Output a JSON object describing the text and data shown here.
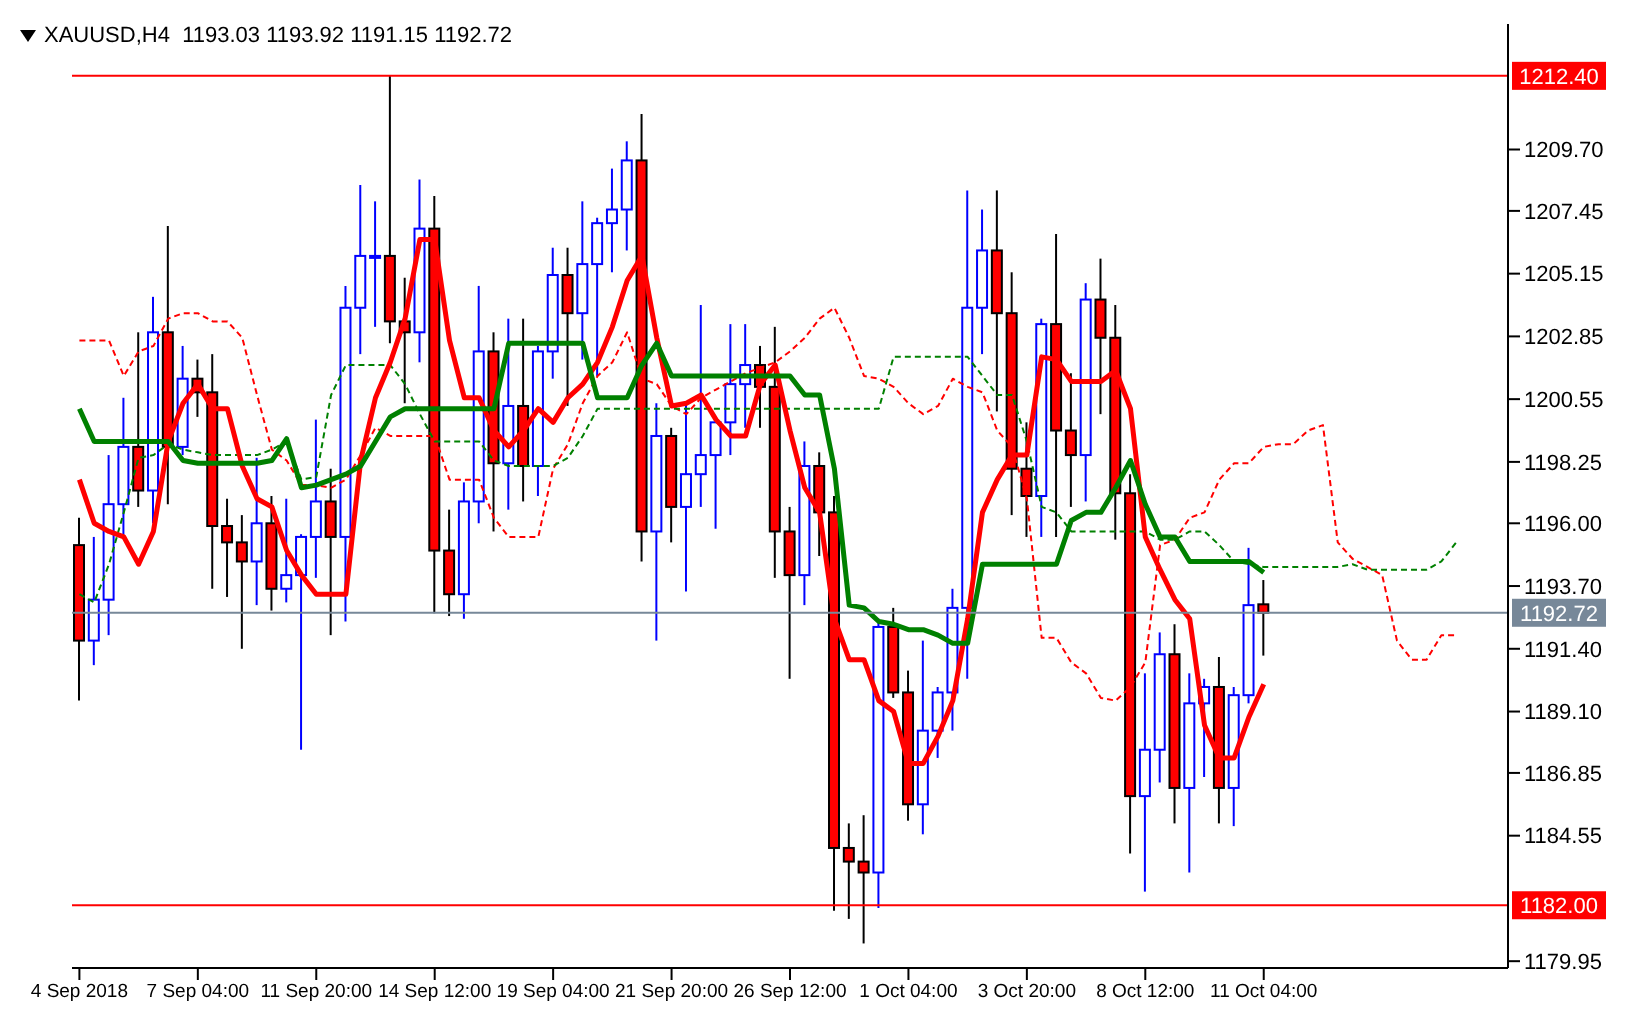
{
  "chart_data": {
    "type": "candlestick",
    "title": "XAUUSD,H4  1193.03 1193.92 1191.15 1192.72",
    "categories": [
      "4 Sep 2018",
      null,
      null,
      null,
      null,
      null,
      null,
      null,
      "7 Sep 04:00",
      null,
      null,
      null,
      null,
      null,
      null,
      null,
      "11 Sep 20:00",
      null,
      null,
      null,
      null,
      null,
      null,
      null,
      "14 Sep 12:00",
      null,
      null,
      null,
      null,
      null,
      null,
      null,
      "19 Sep 04:00",
      null,
      null,
      null,
      null,
      null,
      null,
      null,
      "21 Sep 20:00",
      null,
      null,
      null,
      null,
      null,
      null,
      null,
      "26 Sep 12:00",
      null,
      null,
      null,
      null,
      null,
      null,
      null,
      "1 Oct 04:00",
      null,
      null,
      null,
      null,
      null,
      null,
      null,
      "3 Oct 20:00",
      null,
      null,
      null,
      null,
      null,
      null,
      null,
      "8 Oct 12:00",
      null,
      null,
      null,
      null,
      null,
      null,
      null,
      "11 Oct 04:00",
      null,
      null,
      null,
      null,
      null,
      null,
      null,
      null,
      null,
      null,
      null,
      null,
      null,
      null,
      null,
      null
    ],
    "ohlc": [
      [
        1195.2,
        1196.2,
        1189.5,
        1191.7
      ],
      [
        1191.7,
        1195.5,
        1190.8,
        1193.2
      ],
      [
        1193.2,
        1198.5,
        1191.9,
        1196.7
      ],
      [
        1196.7,
        1200.6,
        1195.5,
        1198.8
      ],
      [
        1198.8,
        1203.0,
        1196.6,
        1197.2
      ],
      [
        1197.2,
        1204.3,
        1196.0,
        1203.0
      ],
      [
        1203.0,
        1206.9,
        1196.7,
        1198.8
      ],
      [
        1198.8,
        1202.5,
        1198.5,
        1201.3
      ],
      [
        1201.3,
        1202.0,
        1199.9,
        1200.8
      ],
      [
        1200.8,
        1202.2,
        1193.6,
        1195.9
      ],
      [
        1195.9,
        1196.9,
        1193.3,
        1195.3
      ],
      [
        1195.3,
        1196.3,
        1191.4,
        1194.6
      ],
      [
        1194.6,
        1198.4,
        1193.0,
        1196.0
      ],
      [
        1196.0,
        1197.0,
        1192.8,
        1193.6
      ],
      [
        1193.6,
        1196.9,
        1193.1,
        1194.1
      ],
      [
        1194.1,
        1195.6,
        1187.7,
        1195.5
      ],
      [
        1195.5,
        1199.8,
        1194.0,
        1196.8
      ],
      [
        1196.8,
        1198.0,
        1191.9,
        1195.5
      ],
      [
        1195.5,
        1204.7,
        1192.4,
        1203.9
      ],
      [
        1203.9,
        1208.4,
        1202.2,
        1205.8
      ],
      [
        1205.8,
        1207.8,
        1203.2,
        1205.8
      ],
      [
        1205.8,
        1212.4,
        1202.6,
        1203.4
      ],
      [
        1203.4,
        1205.0,
        1200.4,
        1203.0
      ],
      [
        1203.0,
        1208.6,
        1201.9,
        1206.8
      ],
      [
        1206.8,
        1208.0,
        1192.7,
        1195.0
      ],
      [
        1195.0,
        1196.5,
        1192.6,
        1193.4
      ],
      [
        1193.4,
        1197.5,
        1192.5,
        1196.8
      ],
      [
        1196.8,
        1204.7,
        1196.0,
        1202.3
      ],
      [
        1202.3,
        1203.0,
        1195.7,
        1198.2
      ],
      [
        1198.2,
        1203.5,
        1196.5,
        1200.3
      ],
      [
        1200.3,
        1203.5,
        1196.8,
        1198.1
      ],
      [
        1198.1,
        1202.5,
        1197.0,
        1202.3
      ],
      [
        1202.3,
        1206.1,
        1201.3,
        1205.1
      ],
      [
        1205.1,
        1206.1,
        1200.3,
        1203.7
      ],
      [
        1203.7,
        1207.8,
        1202.0,
        1205.5
      ],
      [
        1205.5,
        1207.2,
        1201.4,
        1207.0
      ],
      [
        1207.0,
        1209.0,
        1205.2,
        1207.5
      ],
      [
        1207.5,
        1210.0,
        1206.0,
        1209.3
      ],
      [
        1209.3,
        1211.0,
        1194.6,
        1195.7
      ],
      [
        1195.7,
        1200.4,
        1191.7,
        1199.2
      ],
      [
        1199.2,
        1199.5,
        1195.3,
        1196.6
      ],
      [
        1196.6,
        1200.4,
        1193.5,
        1197.8
      ],
      [
        1197.8,
        1204.0,
        1196.6,
        1198.5
      ],
      [
        1198.5,
        1199.8,
        1195.8,
        1199.7
      ],
      [
        1199.7,
        1203.3,
        1198.5,
        1201.1
      ],
      [
        1201.1,
        1203.3,
        1199.5,
        1201.8
      ],
      [
        1201.8,
        1202.5,
        1199.5,
        1201.0
      ],
      [
        1201.0,
        1203.2,
        1194.0,
        1195.7
      ],
      [
        1195.7,
        1196.6,
        1190.3,
        1194.1
      ],
      [
        1194.1,
        1199.0,
        1193.0,
        1198.1
      ],
      [
        1198.1,
        1198.6,
        1194.8,
        1196.4
      ],
      [
        1196.4,
        1197.0,
        1181.8,
        1184.1
      ],
      [
        1184.1,
        1185.0,
        1181.5,
        1183.6
      ],
      [
        1183.6,
        1185.3,
        1180.6,
        1183.2
      ],
      [
        1183.2,
        1192.5,
        1181.9,
        1192.2
      ],
      [
        1192.2,
        1192.9,
        1189.6,
        1189.8
      ],
      [
        1189.8,
        1190.6,
        1185.1,
        1185.7
      ],
      [
        1185.7,
        1191.7,
        1184.6,
        1188.4
      ],
      [
        1188.4,
        1190.0,
        1187.4,
        1189.8
      ],
      [
        1189.8,
        1193.6,
        1188.4,
        1192.9
      ],
      [
        1192.9,
        1208.2,
        1190.3,
        1203.9
      ],
      [
        1203.9,
        1207.5,
        1202.2,
        1206.0
      ],
      [
        1206.0,
        1208.2,
        1200.1,
        1203.7
      ],
      [
        1203.7,
        1205.2,
        1196.3,
        1198.0
      ],
      [
        1198.0,
        1199.7,
        1195.5,
        1197.0
      ],
      [
        1197.0,
        1203.5,
        1195.5,
        1203.3
      ],
      [
        1203.3,
        1206.6,
        1195.5,
        1199.4
      ],
      [
        1199.4,
        1201.5,
        1196.6,
        1198.5
      ],
      [
        1198.5,
        1204.8,
        1196.8,
        1204.2
      ],
      [
        1204.2,
        1205.7,
        1200.0,
        1202.8
      ],
      [
        1202.8,
        1204.0,
        1195.4,
        1197.1
      ],
      [
        1197.1,
        1197.8,
        1183.9,
        1186.0
      ],
      [
        1186.0,
        1190.5,
        1182.5,
        1187.7
      ],
      [
        1187.7,
        1192.0,
        1186.5,
        1191.2
      ],
      [
        1191.2,
        1192.3,
        1185.0,
        1186.3
      ],
      [
        1186.3,
        1190.5,
        1183.2,
        1189.4
      ],
      [
        1189.4,
        1190.3,
        1186.7,
        1190.0
      ],
      [
        1190.0,
        1191.1,
        1185.0,
        1186.3
      ],
      [
        1186.3,
        1190.0,
        1184.9,
        1189.7
      ],
      [
        1189.7,
        1195.1,
        1189.4,
        1193.0
      ],
      [
        1193.03,
        1193.92,
        1191.15,
        1192.72
      ],
      null,
      null,
      null,
      null,
      null,
      null,
      null,
      null,
      null,
      null,
      null,
      null,
      null,
      null,
      null,
      null
    ],
    "colors": [
      "#ff0000",
      "#0000ff",
      "#0000ff",
      "#0000ff",
      "#ff0000",
      "#0000ff",
      "#ff0000",
      "#0000ff",
      "#ff0000",
      "#ff0000",
      "#ff0000",
      "#ff0000",
      "#0000ff",
      "#ff0000",
      "#0000ff",
      "#0000ff",
      "#0000ff",
      "#ff0000",
      "#0000ff",
      "#0000ff",
      "#0000ff",
      "#ff0000",
      "#ff0000",
      "#0000ff",
      "#ff0000",
      "#ff0000",
      "#0000ff",
      "#0000ff",
      "#ff0000",
      "#0000ff",
      "#ff0000",
      "#0000ff",
      "#0000ff",
      "#ff0000",
      "#0000ff",
      "#0000ff",
      "#0000ff",
      "#0000ff",
      "#ff0000",
      "#0000ff",
      "#ff0000",
      "#0000ff",
      "#0000ff",
      "#0000ff",
      "#0000ff",
      "#0000ff",
      "#ff0000",
      "#ff0000",
      "#ff0000",
      "#0000ff",
      "#ff0000",
      "#ff0000",
      "#ff0000",
      "#ff0000",
      "#0000ff",
      "#ff0000",
      "#ff0000",
      "#0000ff",
      "#0000ff",
      "#0000ff",
      "#0000ff",
      "#0000ff",
      "#ff0000",
      "#ff0000",
      "#ff0000",
      "#0000ff",
      "#ff0000",
      "#ff0000",
      "#0000ff",
      "#ff0000",
      "#ff0000",
      "#ff0000",
      "#0000ff",
      "#0000ff",
      "#ff0000",
      "#0000ff",
      "#0000ff",
      "#ff0000",
      "#0000ff",
      "#0000ff",
      "#ff0000",
      null,
      null,
      null,
      null,
      null,
      null,
      null,
      null,
      null,
      null,
      null,
      null,
      null,
      null,
      null,
      null
    ],
    "series": [
      {
        "type": "line",
        "color": "#ff0000",
        "line_style": "dashed",
        "values": [
          1202.7,
          1202.7,
          1202.7,
          1201.4,
          1202.3,
          1202.5,
          1203.5,
          1203.7,
          1203.7,
          1203.4,
          1203.4,
          1202.8,
          1200.7,
          1198.7,
          1198.3,
          1197.4,
          1197.4,
          1197.3,
          1197.6,
          1198.5,
          1199.5,
          1199.2,
          1199.2,
          1199.2,
          1199.2,
          1197.6,
          1197.6,
          1197.6,
          1196.2,
          1195.5,
          1195.5,
          1195.5,
          1198.0,
          1198.9,
          1200.4,
          1201.4,
          1201.9,
          1203.0,
          1201.3,
          1201.1,
          1200.3,
          1200.0,
          1200.6,
          1200.9,
          1201.2,
          1201.5,
          1201.7,
          1201.9,
          1202.3,
          1202.8,
          1203.5,
          1203.9,
          1202.8,
          1201.4,
          1201.3,
          1201.0,
          1200.4,
          1200.0,
          1200.3,
          1201.3,
          1201.0,
          1200.8,
          1199.4,
          1198.8,
          1196.9,
          1191.8,
          1191.8,
          1190.9,
          1190.5,
          1189.6,
          1189.5,
          1190.0,
          1190.9,
          1195.2,
          1195.4,
          1196.2,
          1196.4,
          1197.6,
          1198.2,
          1198.2,
          1198.8,
          1198.9,
          1198.9,
          1199.4,
          1199.6,
          1195.3,
          1194.7,
          1194.4,
          1194.1,
          1191.7,
          1191.0,
          1191.0,
          1191.9,
          1191.9,
          null,
          null,
          null
        ]
      },
      {
        "type": "line",
        "color": "#008000",
        "line_style": "dashed",
        "values": [
          1193.4,
          1193.1,
          1194.5,
          1196.4,
          1198.4,
          1198.5,
          1198.9,
          1198.7,
          1198.6,
          1198.5,
          1198.5,
          1198.5,
          1198.5,
          1198.7,
          1199.0,
          1197.6,
          1197.7,
          1200.7,
          1201.8,
          1201.8,
          1201.8,
          1201.8,
          1201.1,
          1200.0,
          1199.0,
          1199.0,
          1199.0,
          1199.0,
          1198.3,
          1198.1,
          1198.1,
          1198.1,
          1198.1,
          1198.4,
          1199.2,
          1200.2,
          1200.2,
          1200.2,
          1200.2,
          1200.2,
          1200.2,
          1200.2,
          1200.2,
          1200.2,
          1200.2,
          1200.2,
          1200.2,
          1200.2,
          1200.2,
          1200.2,
          1200.2,
          1200.2,
          1200.2,
          1200.2,
          1200.2,
          1202.1,
          1202.1,
          1202.1,
          1202.1,
          1202.1,
          1202.1,
          1201.4,
          1200.7,
          1200.7,
          1199.0,
          1196.6,
          1196.4,
          1195.7,
          1195.7,
          1195.7,
          1195.7,
          1195.7,
          1195.7,
          1195.4,
          1195.4,
          1195.7,
          1195.7,
          1195.2,
          1194.6,
          1194.5,
          1194.4,
          1194.4,
          1194.4,
          1194.4,
          1194.4,
          1194.4,
          1194.5,
          1194.3,
          1194.3,
          1194.3,
          1194.3,
          1194.3,
          1194.6,
          1195.3,
          null,
          null,
          null
        ]
      },
      {
        "type": "line",
        "color": "#ff0000",
        "line_style": "solid",
        "values": [
          1197.6,
          1196.0,
          1195.7,
          1195.5,
          1194.5,
          1195.7,
          1199.0,
          1200.4,
          1201.1,
          1200.2,
          1200.2,
          1198.1,
          1196.9,
          1196.6,
          1195.0,
          1194.1,
          1193.4,
          1193.4,
          1193.4,
          1198.3,
          1200.6,
          1201.9,
          1203.5,
          1206.4,
          1206.4,
          1202.7,
          1200.6,
          1200.6,
          1199.4,
          1198.8,
          1199.4,
          1200.2,
          1199.7,
          1200.6,
          1201.1,
          1201.9,
          1203.2,
          1204.9,
          1205.8,
          1202.8,
          1200.3,
          1200.4,
          1200.7,
          1199.8,
          1199.2,
          1199.2,
          1201.1,
          1201.8,
          1199.4,
          1197.3,
          1196.4,
          1192.5,
          1191.0,
          1191.0,
          1189.5,
          1189.1,
          1187.2,
          1187.2,
          1188.2,
          1189.5,
          1192.5,
          1196.4,
          1197.6,
          1198.5,
          1198.5,
          1202.1,
          1202.0,
          1201.2,
          1201.2,
          1201.2,
          1201.6,
          1200.2,
          1195.5,
          1194.3,
          1193.2,
          1192.5,
          1188.6,
          1187.4,
          1187.4,
          1188.9,
          1190.1,
          null,
          null,
          null,
          null,
          null,
          null,
          null,
          null,
          null,
          null,
          null,
          null,
          null,
          null,
          null,
          null
        ]
      },
      {
        "type": "line",
        "color": "#008000",
        "line_style": "solid",
        "values": [
          1200.2,
          1199.0,
          1199.0,
          1199.0,
          1199.0,
          1199.0,
          1199.0,
          1198.3,
          1198.2,
          1198.2,
          1198.2,
          1198.2,
          1198.2,
          1198.3,
          1199.1,
          1197.3,
          1197.4,
          1197.6,
          1197.8,
          1198.1,
          1199.0,
          1199.9,
          1200.2,
          1200.2,
          1200.2,
          1200.2,
          1200.2,
          1200.2,
          1200.2,
          1202.6,
          1202.6,
          1202.6,
          1202.6,
          1202.6,
          1202.6,
          1200.6,
          1200.6,
          1200.6,
          1201.8,
          1202.6,
          1201.4,
          1201.4,
          1201.4,
          1201.4,
          1201.4,
          1201.4,
          1201.4,
          1201.4,
          1201.4,
          1200.7,
          1200.7,
          1198.0,
          1193.0,
          1192.9,
          1192.4,
          1192.3,
          1192.1,
          1192.1,
          1191.9,
          1191.6,
          1191.6,
          1194.5,
          1194.5,
          1194.5,
          1194.5,
          1194.5,
          1194.5,
          1196.1,
          1196.4,
          1196.4,
          1197.3,
          1198.3,
          1196.7,
          1195.5,
          1195.5,
          1194.6,
          1194.6,
          1194.6,
          1194.6,
          1194.6,
          1194.2,
          null,
          null,
          null,
          null,
          null,
          null,
          null,
          null,
          null,
          null,
          null,
          null,
          null,
          null,
          null,
          null
        ]
      }
    ],
    "ylim": [
      1179.7,
      1214.3
    ],
    "yticks": [
      1179.95,
      1184.55,
      1186.85,
      {
        "value": 1189.1,
        "label": "1189.10"
      },
      {
        "value": 1191.4,
        "label": "1191.40"
      },
      {
        "value": 1193.7,
        "label": "1193.70"
      },
      {
        "value": 1196,
        "label": "1196.00"
      },
      1198.25,
      1200.55,
      1202.85,
      1205.15,
      1207.45,
      {
        "value": 1209.7,
        "label": "1209.70"
      }
    ],
    "ref_lines": [
      {
        "axis": "y",
        "value": 1212.4,
        "label": "1212.40",
        "color": "#ff0000"
      },
      {
        "axis": "y",
        "value": 1182,
        "label": "1182.00",
        "color": "#ff0000"
      },
      {
        "axis": "y",
        "value": 1192.72,
        "label": "1192.72",
        "color": "#778899"
      }
    ]
  }
}
